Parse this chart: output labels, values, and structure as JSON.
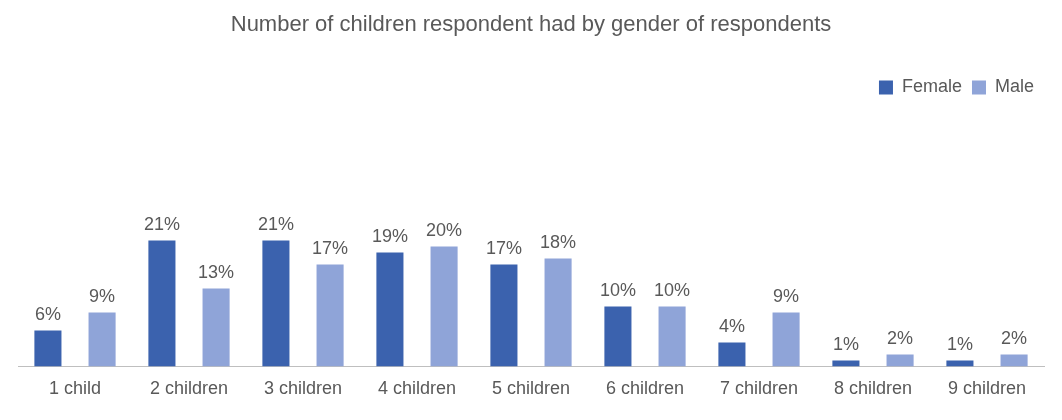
{
  "chart_data": {
    "type": "bar",
    "title": "Number of children respondent had by gender of respondents",
    "categories": [
      "1 child",
      "2 children",
      "3 children",
      "4 children",
      "5 children",
      "6 children",
      "7 children",
      "8 children",
      "9 children"
    ],
    "series": [
      {
        "name": "Female",
        "color": "#3b62ae",
        "values": [
          6,
          21,
          21,
          19,
          17,
          10,
          4,
          1,
          1
        ],
        "value_labels": [
          "6%",
          "21%",
          "21%",
          "19%",
          "17%",
          "10%",
          "4%",
          "1%",
          "1%"
        ]
      },
      {
        "name": "Male",
        "color": "#8fa4d8",
        "values": [
          9,
          13,
          17,
          20,
          18,
          10,
          9,
          2,
          2
        ],
        "value_labels": [
          "9%",
          "13%",
          "17%",
          "20%",
          "18%",
          "10%",
          "9%",
          "2%",
          "2%"
        ]
      }
    ],
    "legend": "top right",
    "grid": false
  }
}
